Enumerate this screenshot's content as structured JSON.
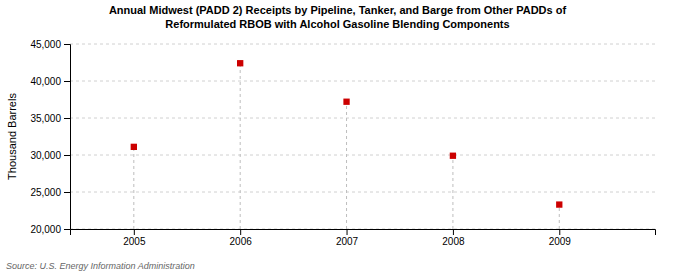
{
  "chart_data": {
    "type": "scatter",
    "title": [
      "Annual Midwest (PADD 2) Receipts by Pipeline, Tanker, and Barge from Other PADDs of",
      "Reformulated RBOB with Alcohol Gasoline Blending Components"
    ],
    "ylabel": "Thousand Barrels",
    "source": "Source: U.S. Energy Information Administration",
    "x": [
      2005,
      2006,
      2007,
      2008,
      2009
    ],
    "values": [
      31100,
      42400,
      37200,
      29900,
      23300
    ],
    "xlim": [
      2004.4,
      2009.9
    ],
    "ylim": [
      20000,
      45000
    ],
    "xticks": [
      2005,
      2006,
      2007,
      2008,
      2009
    ],
    "yticks": [
      {
        "value": 20000,
        "label": "20,000"
      },
      {
        "value": 25000,
        "label": "25,000"
      },
      {
        "value": 30000,
        "label": "30,000"
      },
      {
        "value": 35000,
        "label": "35,000"
      },
      {
        "value": 40000,
        "label": "40,000"
      },
      {
        "value": 45000,
        "label": "45,000"
      }
    ],
    "color": "#cc0000",
    "marker": "square",
    "grid": true
  }
}
